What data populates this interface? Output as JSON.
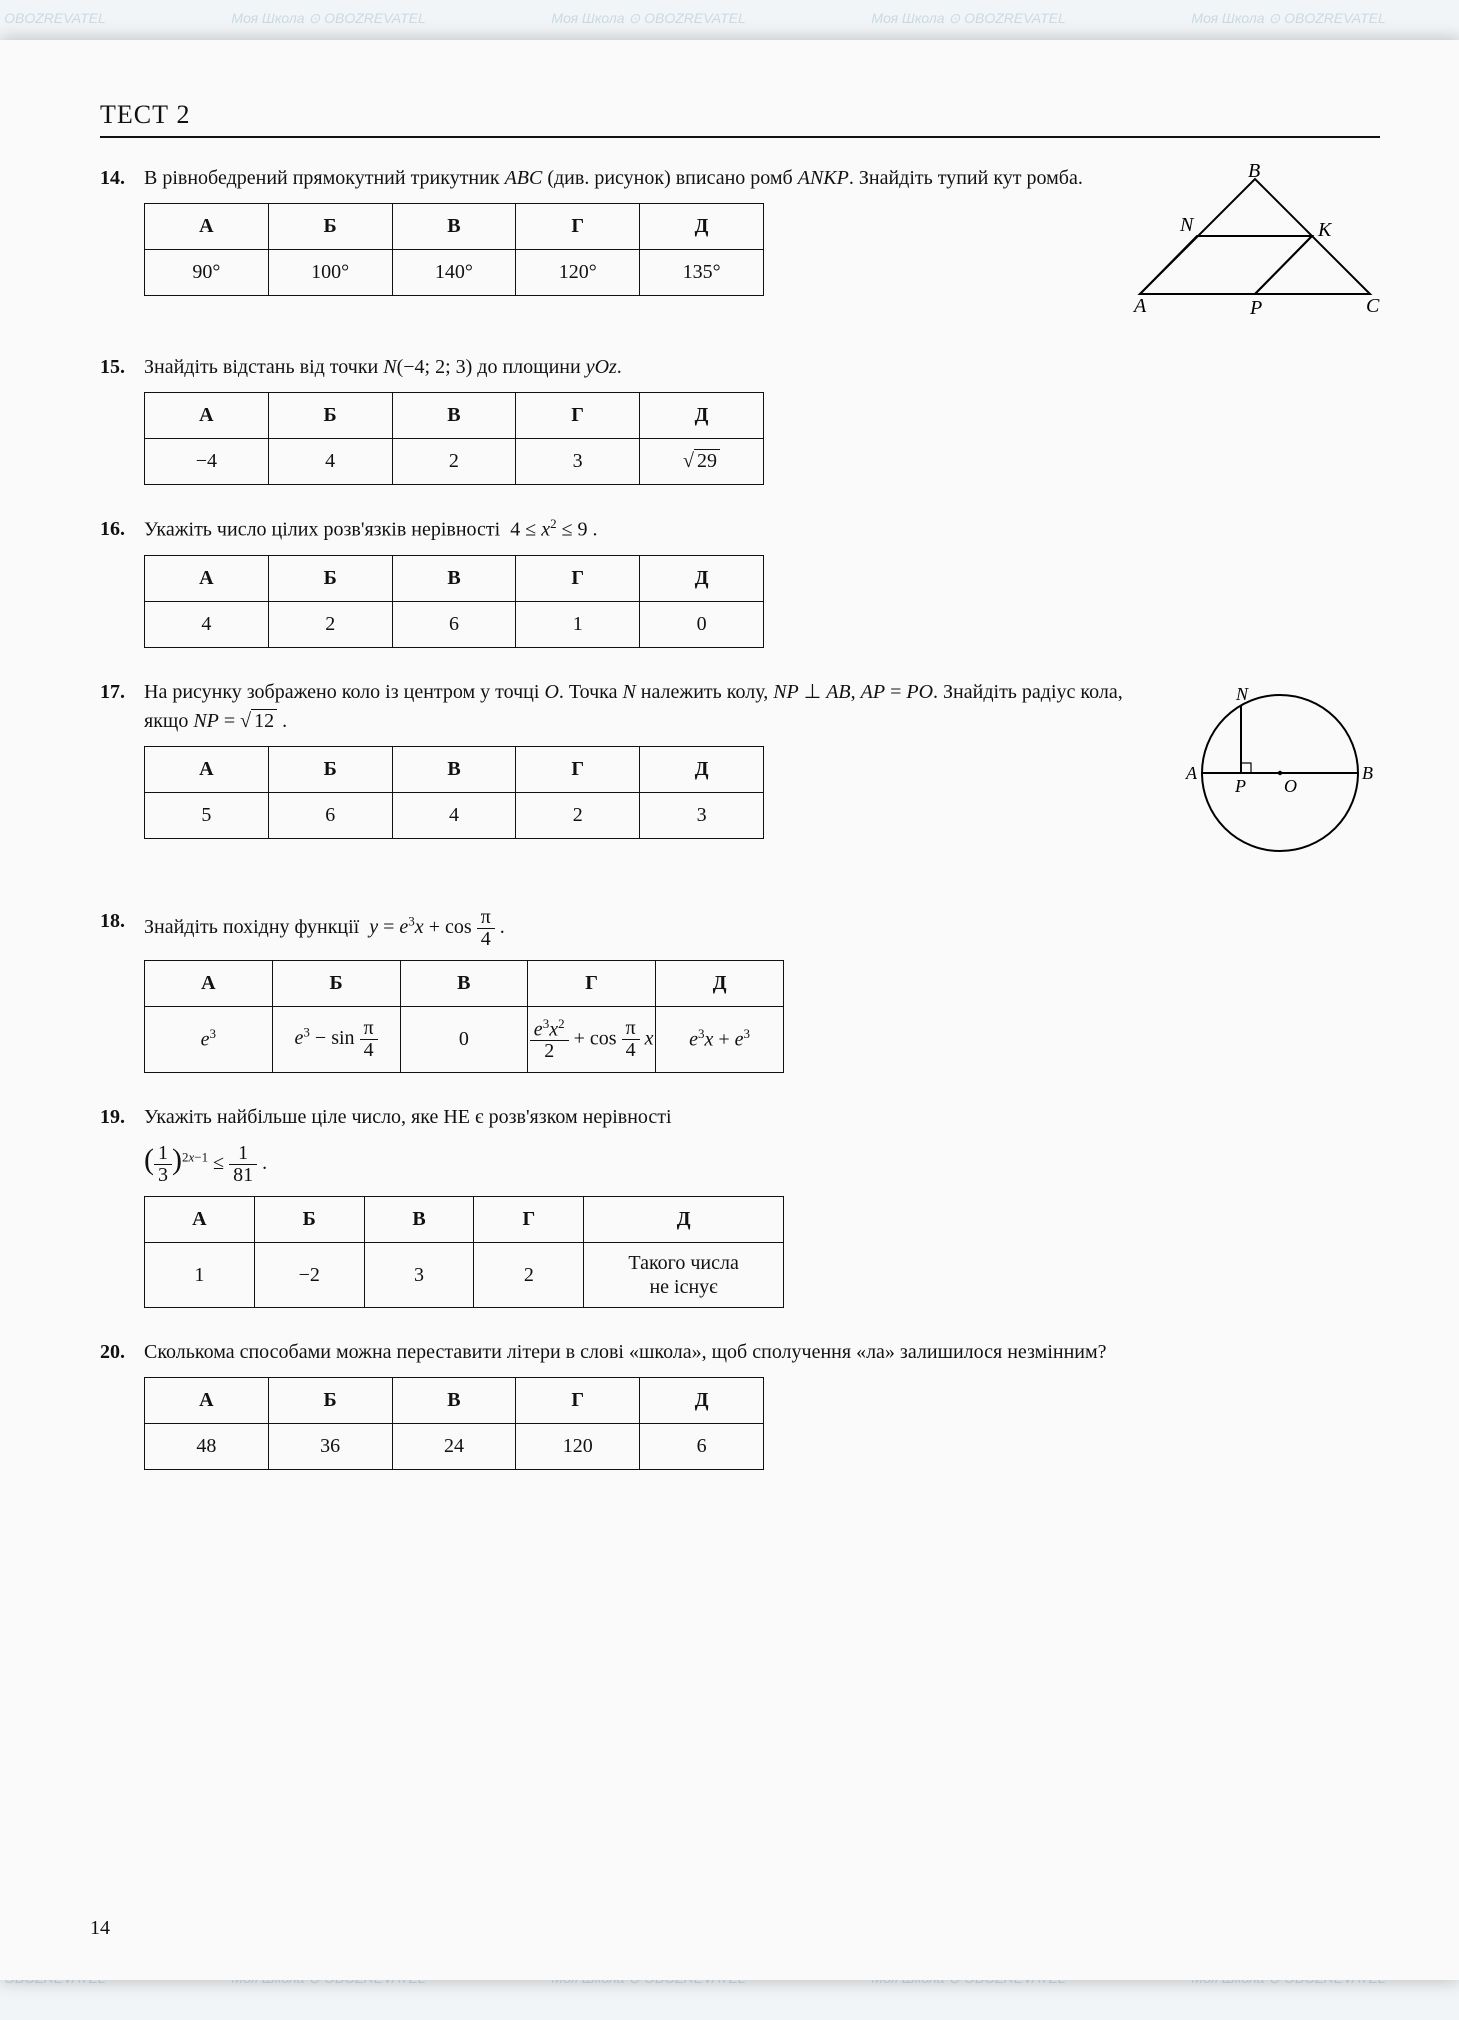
{
  "header": "ТЕСТ 2",
  "page_number": "14",
  "columns": [
    "А",
    "Б",
    "В",
    "Г",
    "Д"
  ],
  "q14": {
    "num": "14.",
    "text": "В рівнобедрений прямокутний трикутник ABC (див. рисунок) вписано ромб ANKP. Знайдіть тупий кут ромба.",
    "row": [
      "90°",
      "100°",
      "140°",
      "120°",
      "135°"
    ],
    "fig_labels": {
      "A": "A",
      "B": "B",
      "C": "C",
      "N": "N",
      "K": "K",
      "P": "P"
    }
  },
  "q15": {
    "num": "15.",
    "text": "Знайдіть відстань від точки N(−4; 2; 3) до площини yOz.",
    "row": [
      "−4",
      "4",
      "2",
      "3",
      "√29"
    ]
  },
  "q16": {
    "num": "16.",
    "text": "Укажіть число цілих розв'язків нерівності 4 ≤ x² ≤ 9.",
    "row": [
      "4",
      "2",
      "6",
      "1",
      "0"
    ]
  },
  "q17": {
    "num": "17.",
    "text": "На рисунку зображено коло із центром у точці O. Точка N належить колу, NP ⊥ AB, AP = PO. Знайдіть радіус кола, якщо NP = √12 .",
    "row": [
      "5",
      "6",
      "4",
      "2",
      "3"
    ],
    "fig_labels": {
      "A": "A",
      "B": "B",
      "N": "N",
      "O": "O",
      "P": "P"
    }
  },
  "q18": {
    "num": "18.",
    "text_pre": "Знайдіть похідну функції ",
    "text_eq": "y = e³x + cos(π/4)",
    "row_a": "e³",
    "row_b": "e³ − sin(π/4)",
    "row_c": "0",
    "row_d": "(e³x²)/2 + cos(π/4)·x",
    "row_e": "e³x + e³"
  },
  "q19": {
    "num": "19.",
    "text": "Укажіть найбільше ціле число, яке НЕ є розв'язком нерівності",
    "row": [
      "1",
      "−2",
      "3",
      "2",
      "Такого числа не існує"
    ]
  },
  "q20": {
    "num": "20.",
    "text": "Сколькома способами можна переставити літери в слові «школа», щоб сполучення «ла» залишилося незмінним?",
    "row": [
      "48",
      "36",
      "24",
      "120",
      "6"
    ]
  },
  "watermark_text": "Моя Школа ⊙ OBOZREVATEL"
}
